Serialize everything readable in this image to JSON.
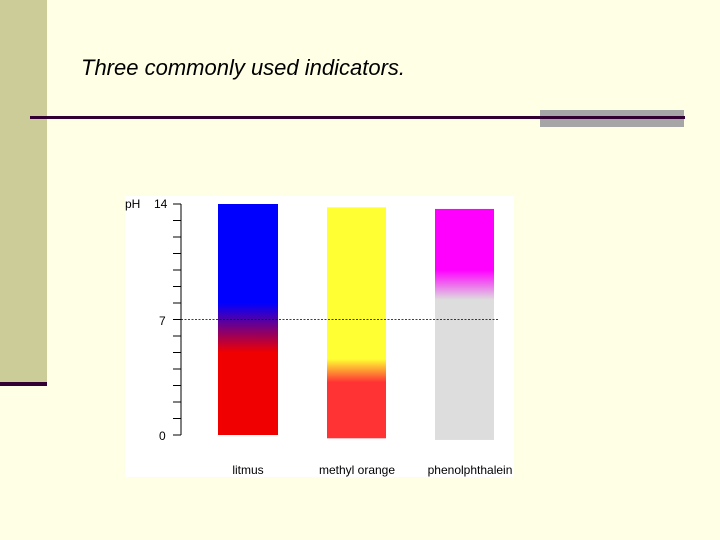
{
  "slide": {
    "title": "Three commonly used indicators.",
    "colors": {
      "background": "#FFFFE6",
      "sidebar": "#CCCC99",
      "rule": "#330033",
      "rule_accent": "#A6A6A6"
    }
  },
  "figure": {
    "axis": {
      "label": "pH",
      "ticks": {
        "top": "14",
        "middle": "7",
        "bottom": "0"
      },
      "range": [
        0,
        14
      ],
      "minor_step": 1
    },
    "indicators": [
      {
        "name": "litmus",
        "colors": {
          "high": "#0000FF",
          "low": "#F00000"
        },
        "transition_ph": [
          5.0,
          8.0
        ],
        "top_ph": 14.0,
        "bottom_ph": 0.0
      },
      {
        "name": "methyl orange",
        "colors": {
          "high": "#FFFF33",
          "low": "#FF3333"
        },
        "transition_ph": [
          3.2,
          4.6
        ],
        "top_ph": 13.8,
        "bottom_ph": -0.2
      },
      {
        "name": "phenolphthalein",
        "colors": {
          "high": "#FF00FF",
          "low": "#DDDDDD"
        },
        "transition_ph": [
          8.2,
          10.0
        ],
        "top_ph": 13.7,
        "bottom_ph": -0.3
      }
    ]
  }
}
